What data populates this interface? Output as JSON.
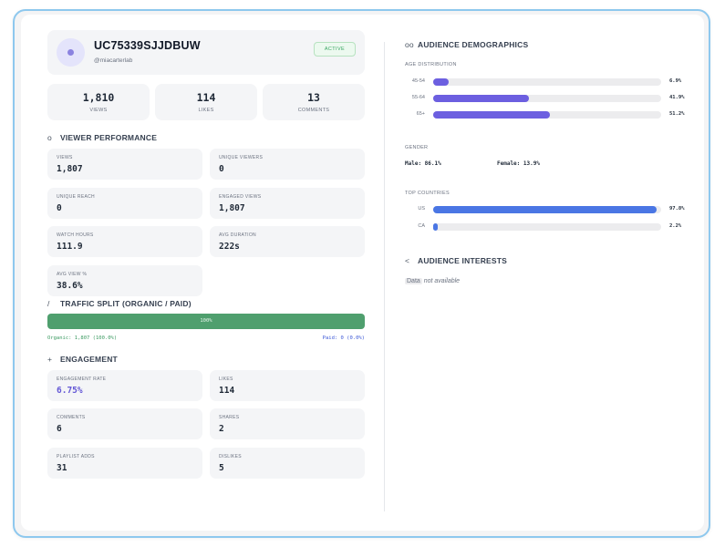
{
  "profile": {
    "channel_id": "UC75339SJJDBUW",
    "handle": "@miacarterlab",
    "status": "ACTIVE"
  },
  "top_stats": [
    {
      "value": "1,810",
      "label": "VIEWS"
    },
    {
      "value": "114",
      "label": "LIKES"
    },
    {
      "value": "13",
      "label": "COMMENTS"
    }
  ],
  "viewer_performance": {
    "icon": "circle-icon",
    "title": "VIEWER PERFORMANCE",
    "cards": [
      {
        "label": "VIEWS",
        "value": "1,807"
      },
      {
        "label": "UNIQUE VIEWERS",
        "value": "0"
      },
      {
        "label": "UNIQUE REACH",
        "value": "0"
      },
      {
        "label": "ENGAGED VIEWS",
        "value": "1,807"
      },
      {
        "label": "WATCH HOURS",
        "value": "111.9"
      },
      {
        "label": "AVG DURATION",
        "value": "222s"
      },
      {
        "label": "AVG VIEW %",
        "value": "38.6%"
      }
    ]
  },
  "traffic_split": {
    "icon": "slash-icon",
    "title": "TRAFFIC SPLIT (ORGANIC / PAID)",
    "bar_label": "100%",
    "organic_fraction": 1.0,
    "organic_text": "Organic: 1,807 (100.0%)",
    "paid_text": "Paid: 0 (0.0%)",
    "color": "#4f9f6e"
  },
  "engagement": {
    "icon": "plus-icon",
    "title": "ENGAGEMENT",
    "cards": [
      {
        "label": "ENGAGEMENT RATE",
        "value": "6.75%"
      },
      {
        "label": "LIKES",
        "value": "114"
      },
      {
        "label": "COMMENTS",
        "value": "6"
      },
      {
        "label": "SHARES",
        "value": "2"
      },
      {
        "label": "PLAYLIST ADDS",
        "value": "31"
      },
      {
        "label": "DISLIKES",
        "value": "5"
      }
    ]
  },
  "audience_demographics": {
    "icon": "infinity-icon",
    "title": "AUDIENCE DEMOGRAPHICS",
    "age_label": "AGE DISTRIBUTION",
    "age": [
      {
        "label": "45-54",
        "value": "6.9%",
        "fraction": 0.069
      },
      {
        "label": "55-64",
        "value": "41.9%",
        "fraction": 0.419
      },
      {
        "label": "65+",
        "value": "51.2%",
        "fraction": 0.512
      }
    ],
    "gender_label": "GENDER",
    "male": "Male: 86.1%",
    "female": "Female: 13.9%",
    "countries_label": "TOP COUNTRIES",
    "countries": [
      {
        "label": "US",
        "value": "97.8%",
        "fraction": 0.978
      },
      {
        "label": "CA",
        "value": "2.2%",
        "fraction": 0.022
      }
    ],
    "age_color": "#6c5fe0",
    "country_color": "#4a76e4"
  },
  "audience_interests": {
    "icon": "chevron-left-icon",
    "title": "AUDIENCE INTERESTS",
    "code_word": "Data",
    "message": " not available"
  }
}
